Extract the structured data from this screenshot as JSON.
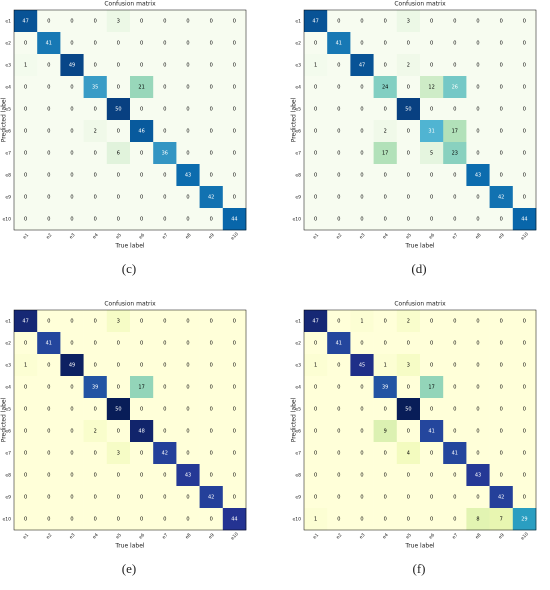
{
  "chart_data": [
    {
      "type": "heatmap",
      "title": "Confusion matrix",
      "xlabel": "True label",
      "ylabel": "Predicted label",
      "caption": "(c)",
      "x": [
        "e1",
        "e2",
        "e3",
        "e4",
        "e5",
        "e6",
        "e7",
        "e8",
        "e9",
        "e10"
      ],
      "y": [
        "e1",
        "e2",
        "e3",
        "e4",
        "e5",
        "e6",
        "e7",
        "e8",
        "e9",
        "e10"
      ],
      "colormap": [
        "#f7fcf0",
        "#e0f3db",
        "#ccebc5",
        "#a8ddb5",
        "#7bccc4",
        "#4eb3d3",
        "#2b8cbe",
        "#0868ac",
        "#084081"
      ],
      "values": [
        [
          47,
          0,
          0,
          0,
          3,
          0,
          0,
          0,
          0,
          0
        ],
        [
          0,
          41,
          0,
          0,
          0,
          0,
          0,
          0,
          0,
          0
        ],
        [
          1,
          0,
          49,
          0,
          0,
          0,
          0,
          0,
          0,
          0
        ],
        [
          0,
          0,
          0,
          35,
          0,
          21,
          0,
          0,
          0,
          0
        ],
        [
          0,
          0,
          0,
          0,
          50,
          0,
          0,
          0,
          0,
          0
        ],
        [
          0,
          0,
          0,
          2,
          0,
          46,
          0,
          0,
          0,
          0
        ],
        [
          0,
          0,
          0,
          0,
          6,
          0,
          36,
          0,
          0,
          0
        ],
        [
          0,
          0,
          0,
          0,
          0,
          0,
          0,
          43,
          0,
          0
        ],
        [
          0,
          0,
          0,
          0,
          0,
          0,
          0,
          0,
          42,
          0
        ],
        [
          0,
          0,
          0,
          0,
          0,
          0,
          0,
          0,
          0,
          44
        ]
      ]
    },
    {
      "type": "heatmap",
      "title": "Confusion matrix",
      "xlabel": "True label",
      "ylabel": "Predicted label",
      "caption": "(d)",
      "x": [
        "e1",
        "e2",
        "e3",
        "e4",
        "e5",
        "e6",
        "e7",
        "e8",
        "e9",
        "e10"
      ],
      "y": [
        "e1",
        "e2",
        "e3",
        "e4",
        "e5",
        "e6",
        "e7",
        "e8",
        "e9",
        "e10"
      ],
      "colormap": [
        "#f7fcf0",
        "#e0f3db",
        "#ccebc5",
        "#a8ddb5",
        "#7bccc4",
        "#4eb3d3",
        "#2b8cbe",
        "#0868ac",
        "#084081"
      ],
      "values": [
        [
          47,
          0,
          0,
          0,
          3,
          0,
          0,
          0,
          0,
          0
        ],
        [
          0,
          41,
          0,
          0,
          0,
          0,
          0,
          0,
          0,
          0
        ],
        [
          1,
          0,
          47,
          0,
          2,
          0,
          0,
          0,
          0,
          0
        ],
        [
          0,
          0,
          0,
          24,
          0,
          12,
          26,
          0,
          0,
          0
        ],
        [
          0,
          0,
          0,
          0,
          50,
          0,
          0,
          0,
          0,
          0
        ],
        [
          0,
          0,
          0,
          2,
          0,
          31,
          17,
          0,
          0,
          0
        ],
        [
          0,
          0,
          0,
          17,
          0,
          5,
          23,
          0,
          0,
          0
        ],
        [
          0,
          0,
          0,
          0,
          0,
          0,
          0,
          43,
          0,
          0
        ],
        [
          0,
          0,
          0,
          0,
          0,
          0,
          0,
          0,
          42,
          0
        ],
        [
          0,
          0,
          0,
          0,
          0,
          0,
          0,
          0,
          0,
          44
        ]
      ]
    },
    {
      "type": "heatmap",
      "title": "Confusion matrix",
      "xlabel": "True label",
      "ylabel": "Predicted label",
      "caption": "(e)",
      "x": [
        "e1",
        "e2",
        "e3",
        "e4",
        "e5",
        "e6",
        "e7",
        "e8",
        "e9",
        "e10"
      ],
      "y": [
        "e1",
        "e2",
        "e3",
        "e4",
        "e5",
        "e6",
        "e7",
        "e8",
        "e9",
        "e10"
      ],
      "colormap": [
        "#ffffd9",
        "#edf8b1",
        "#c7e9b4",
        "#7fcdbb",
        "#41b6c4",
        "#1d91c0",
        "#225ea8",
        "#253494",
        "#081d58"
      ],
      "values": [
        [
          47,
          0,
          0,
          0,
          3,
          0,
          0,
          0,
          0,
          0
        ],
        [
          0,
          41,
          0,
          0,
          0,
          0,
          0,
          0,
          0,
          0
        ],
        [
          1,
          0,
          49,
          0,
          0,
          0,
          0,
          0,
          0,
          0
        ],
        [
          0,
          0,
          0,
          39,
          0,
          17,
          0,
          0,
          0,
          0
        ],
        [
          0,
          0,
          0,
          0,
          50,
          0,
          0,
          0,
          0,
          0
        ],
        [
          0,
          0,
          0,
          2,
          0,
          48,
          0,
          0,
          0,
          0
        ],
        [
          0,
          0,
          0,
          0,
          3,
          0,
          42,
          0,
          0,
          0
        ],
        [
          0,
          0,
          0,
          0,
          0,
          0,
          0,
          43,
          0,
          0
        ],
        [
          0,
          0,
          0,
          0,
          0,
          0,
          0,
          0,
          42,
          0
        ],
        [
          0,
          0,
          0,
          0,
          0,
          0,
          0,
          0,
          0,
          44
        ]
      ]
    },
    {
      "type": "heatmap",
      "title": "Confusion matrix",
      "xlabel": "True label",
      "ylabel": "Predicted label",
      "caption": "(f)",
      "x": [
        "e1",
        "e2",
        "e3",
        "e4",
        "e5",
        "e6",
        "e7",
        "e8",
        "e9",
        "e10"
      ],
      "y": [
        "e1",
        "e2",
        "e3",
        "e4",
        "e5",
        "e6",
        "e7",
        "e8",
        "e9",
        "e10"
      ],
      "colormap": [
        "#ffffd9",
        "#edf8b1",
        "#c7e9b4",
        "#7fcdbb",
        "#41b6c4",
        "#1d91c0",
        "#225ea8",
        "#253494",
        "#081d58"
      ],
      "values": [
        [
          47,
          0,
          1,
          0,
          2,
          0,
          0,
          0,
          0,
          0
        ],
        [
          0,
          41,
          0,
          0,
          0,
          0,
          0,
          0,
          0,
          0
        ],
        [
          1,
          0,
          45,
          1,
          3,
          0,
          0,
          0,
          0,
          0
        ],
        [
          0,
          0,
          0,
          39,
          0,
          17,
          0,
          0,
          0,
          0
        ],
        [
          0,
          0,
          0,
          0,
          50,
          0,
          0,
          0,
          0,
          0
        ],
        [
          0,
          0,
          0,
          9,
          0,
          41,
          0,
          0,
          0,
          0
        ],
        [
          0,
          0,
          0,
          0,
          4,
          0,
          41,
          0,
          0,
          0
        ],
        [
          0,
          0,
          0,
          0,
          0,
          0,
          0,
          43,
          0,
          0
        ],
        [
          0,
          0,
          0,
          0,
          0,
          0,
          0,
          0,
          42,
          0
        ],
        [
          1,
          0,
          0,
          0,
          0,
          0,
          0,
          8,
          7,
          29
        ]
      ]
    }
  ]
}
